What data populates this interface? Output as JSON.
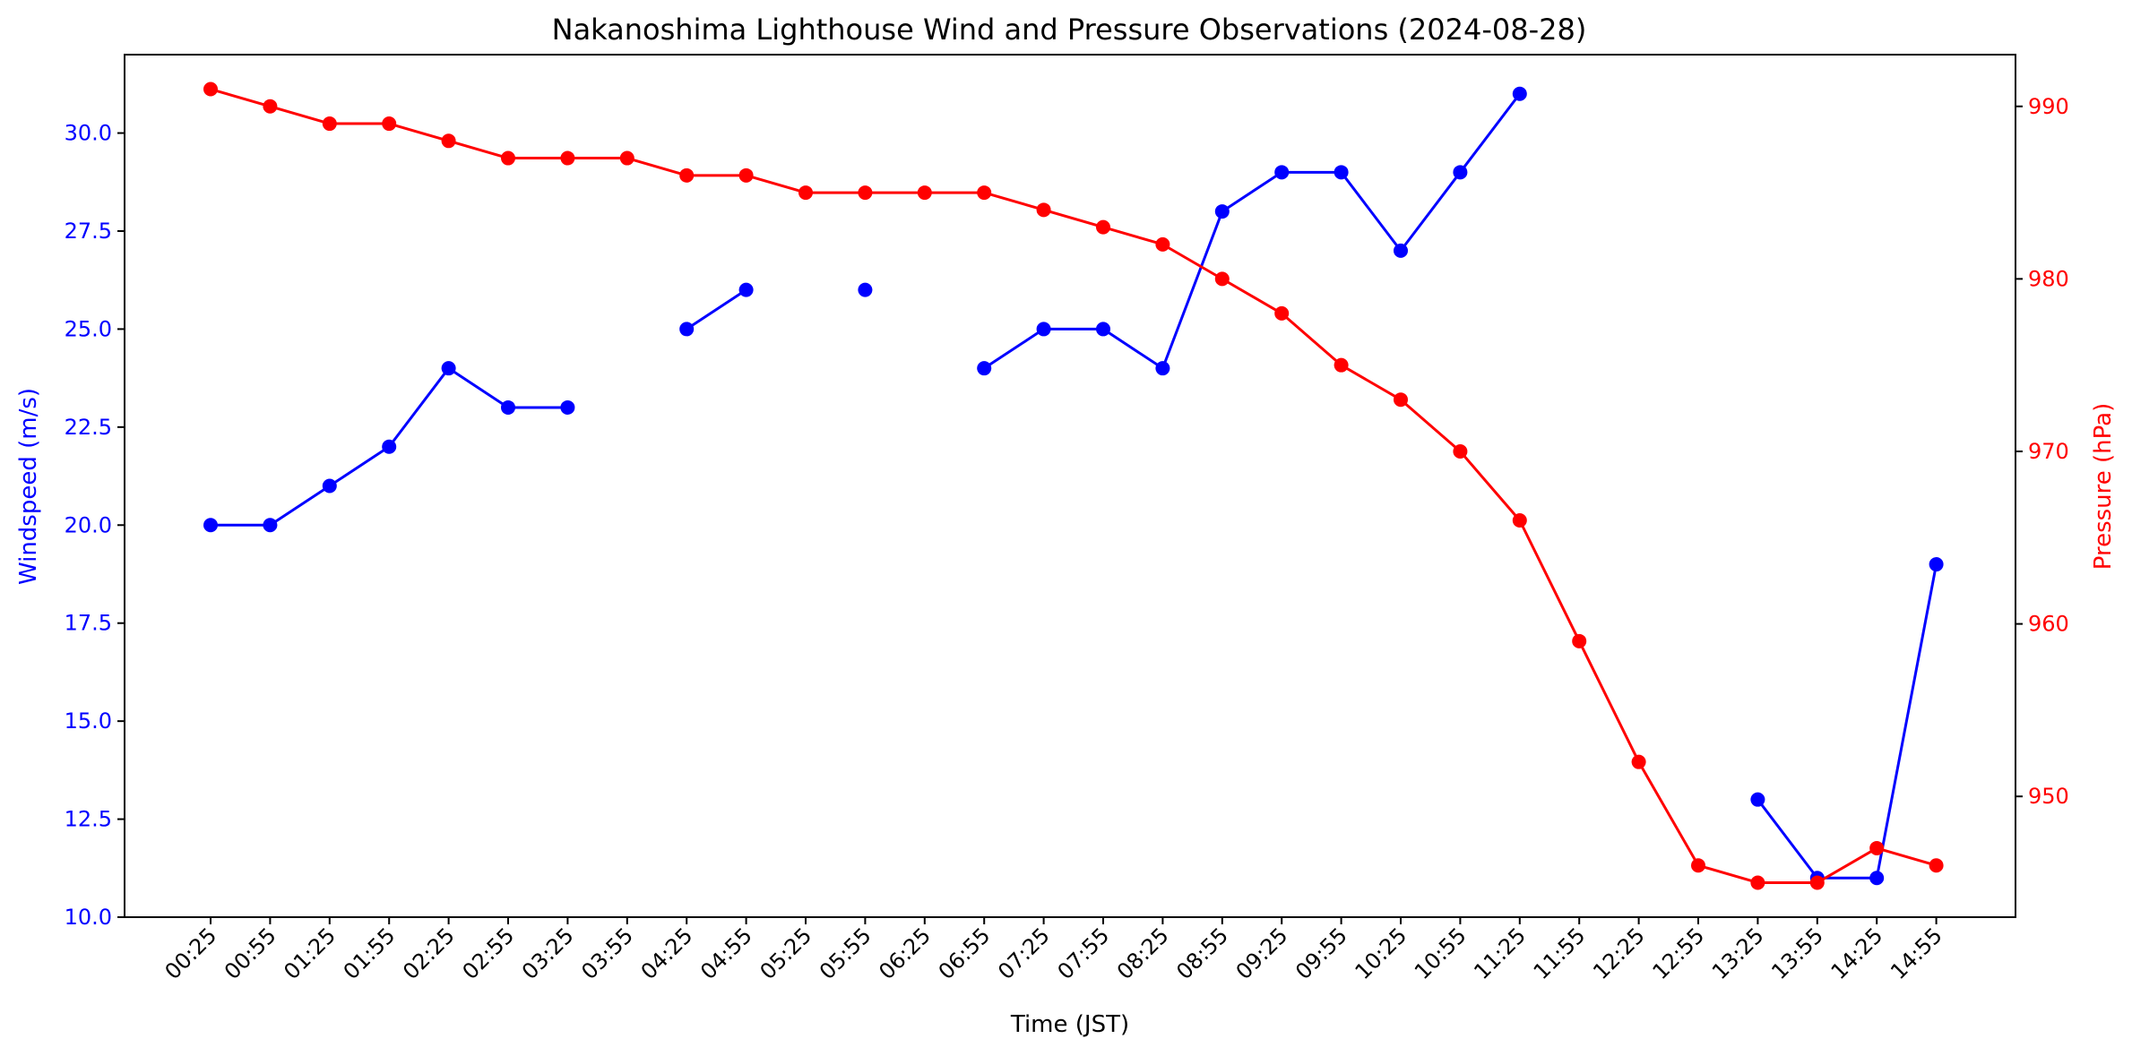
{
  "chart_data": {
    "type": "line",
    "title": "Nakanoshima Lighthouse Wind and Pressure Observations (2024-08-28)",
    "xlabel": "Time (JST)",
    "ylabel_left": "Windspeed (m/s)",
    "ylabel_right": "Pressure (hPa)",
    "categories": [
      "00:25",
      "00:55",
      "01:25",
      "01:55",
      "02:25",
      "02:55",
      "03:25",
      "03:55",
      "04:25",
      "04:55",
      "05:25",
      "05:55",
      "06:25",
      "06:55",
      "07:25",
      "07:55",
      "08:25",
      "08:55",
      "09:25",
      "09:55",
      "10:25",
      "10:55",
      "11:25",
      "11:55",
      "12:25",
      "12:55",
      "13:25",
      "13:55",
      "14:25",
      "14:55"
    ],
    "y_left": {
      "lim": [
        10,
        32
      ],
      "ticks": [
        "10.0",
        "12.5",
        "15.0",
        "17.5",
        "20.0",
        "22.5",
        "25.0",
        "27.5",
        "30.0"
      ]
    },
    "y_right": {
      "lim": [
        943,
        993
      ],
      "ticks": [
        "950",
        "960",
        "970",
        "980",
        "990"
      ]
    },
    "series": [
      {
        "name": "Windspeed",
        "axis": "left",
        "color": "#0000ff",
        "values": [
          20,
          20,
          21,
          22,
          24,
          23,
          23,
          null,
          25,
          26,
          null,
          26,
          null,
          24,
          25,
          25,
          24,
          28,
          29,
          29,
          27,
          29,
          31,
          null,
          null,
          null,
          13,
          11,
          11,
          19
        ]
      },
      {
        "name": "Pressure",
        "axis": "right",
        "color": "#ff0000",
        "values": [
          991,
          990,
          989,
          989,
          988,
          987,
          987,
          987,
          986,
          986,
          985,
          985,
          985,
          985,
          984,
          983,
          982,
          980,
          978,
          975,
          973,
          970,
          966,
          959,
          952,
          946,
          945,
          945,
          947,
          946
        ]
      }
    ],
    "grid": false,
    "legend": "none"
  }
}
